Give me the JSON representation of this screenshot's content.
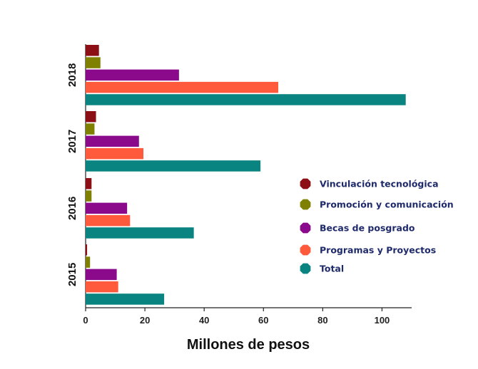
{
  "chart_data": {
    "type": "bar",
    "orientation": "horizontal",
    "categories": [
      "2015",
      "2016",
      "2017",
      "2018"
    ],
    "series": [
      {
        "name": "Vinculación tecnológica",
        "color": "#8b0f14",
        "values": [
          0.5,
          2,
          3.5,
          4.5
        ]
      },
      {
        "name": "Promoción y comunicación",
        "color": "#808000",
        "values": [
          1.5,
          2,
          3,
          5
        ]
      },
      {
        "name": "Becas de posgrado",
        "color": "#8b0a8b",
        "values": [
          10.5,
          14,
          18,
          31.5
        ]
      },
      {
        "name": "Programas y Proyectos",
        "color": "#ff5a3c",
        "values": [
          11,
          15,
          19.5,
          65
        ]
      },
      {
        "name": "Total",
        "color": "#0a8480",
        "values": [
          26.5,
          36.5,
          59,
          108
        ]
      }
    ],
    "xlabel": "Millones de pesos",
    "ylabel": "",
    "xlim": [
      0,
      110
    ],
    "xticks": [
      0,
      20,
      40,
      60,
      80,
      100
    ],
    "grid": false,
    "legend_position": "right"
  }
}
